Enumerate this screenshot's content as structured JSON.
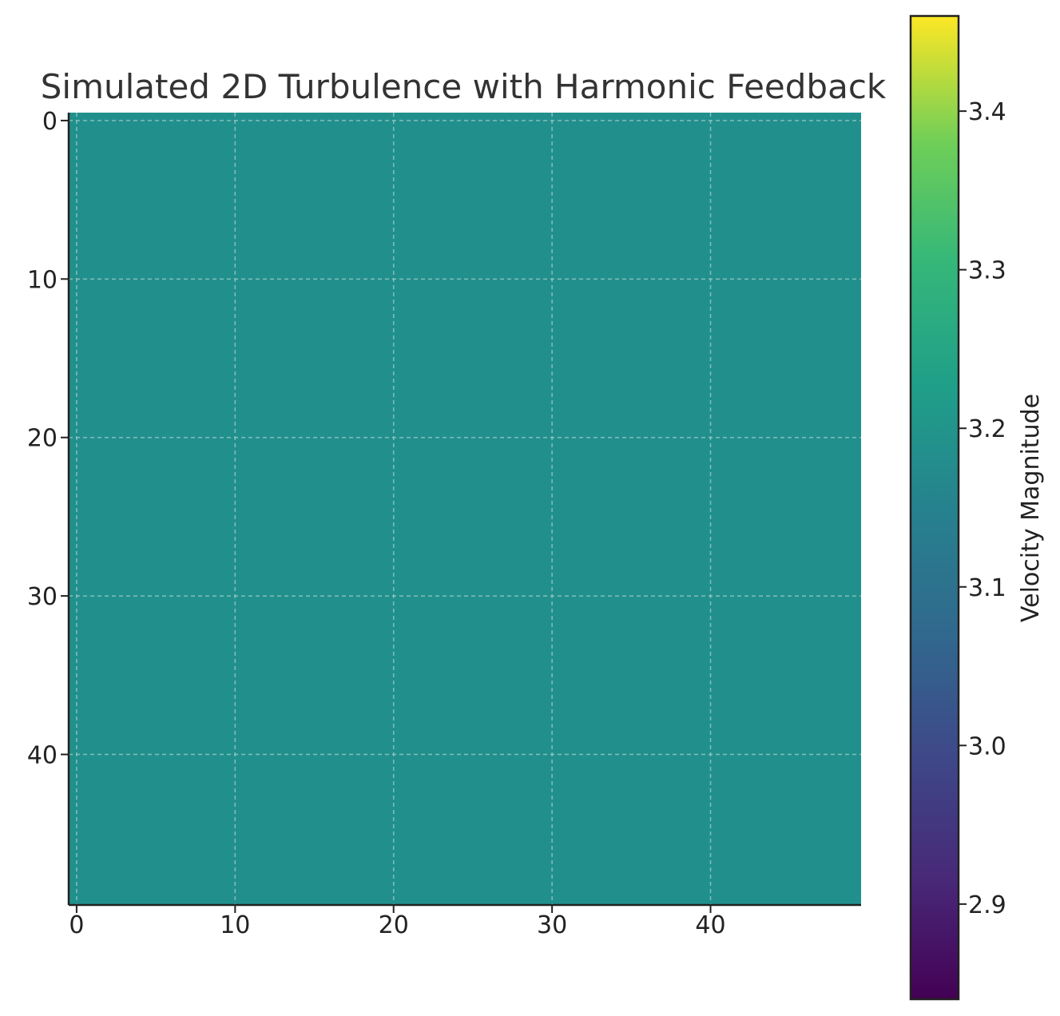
{
  "chart_data": {
    "type": "heatmap",
    "title": "Simulated 2D Turbulence with Harmonic Feedback",
    "xlabel": "",
    "ylabel": "",
    "grid_shape": [
      50,
      50
    ],
    "field_value": 3.14,
    "uniform": true,
    "x_ticks": [
      0,
      10,
      20,
      30,
      40
    ],
    "y_ticks": [
      0,
      10,
      20,
      30,
      40
    ],
    "xlim": [
      -0.5,
      49.5
    ],
    "ylim": [
      49.5,
      -0.5
    ],
    "y_axis_inverted": true,
    "grid": true,
    "colorbar": {
      "label": "Velocity Magnitude",
      "colormap": "viridis",
      "range": [
        2.84,
        3.46
      ],
      "ticks": [
        "2.9",
        "3.0",
        "3.1",
        "3.2",
        "3.3",
        "3.4"
      ]
    },
    "colors": {
      "field": "#21908d",
      "axis": "#222222",
      "grid": "#9fc9c6",
      "title": "#333333"
    }
  }
}
